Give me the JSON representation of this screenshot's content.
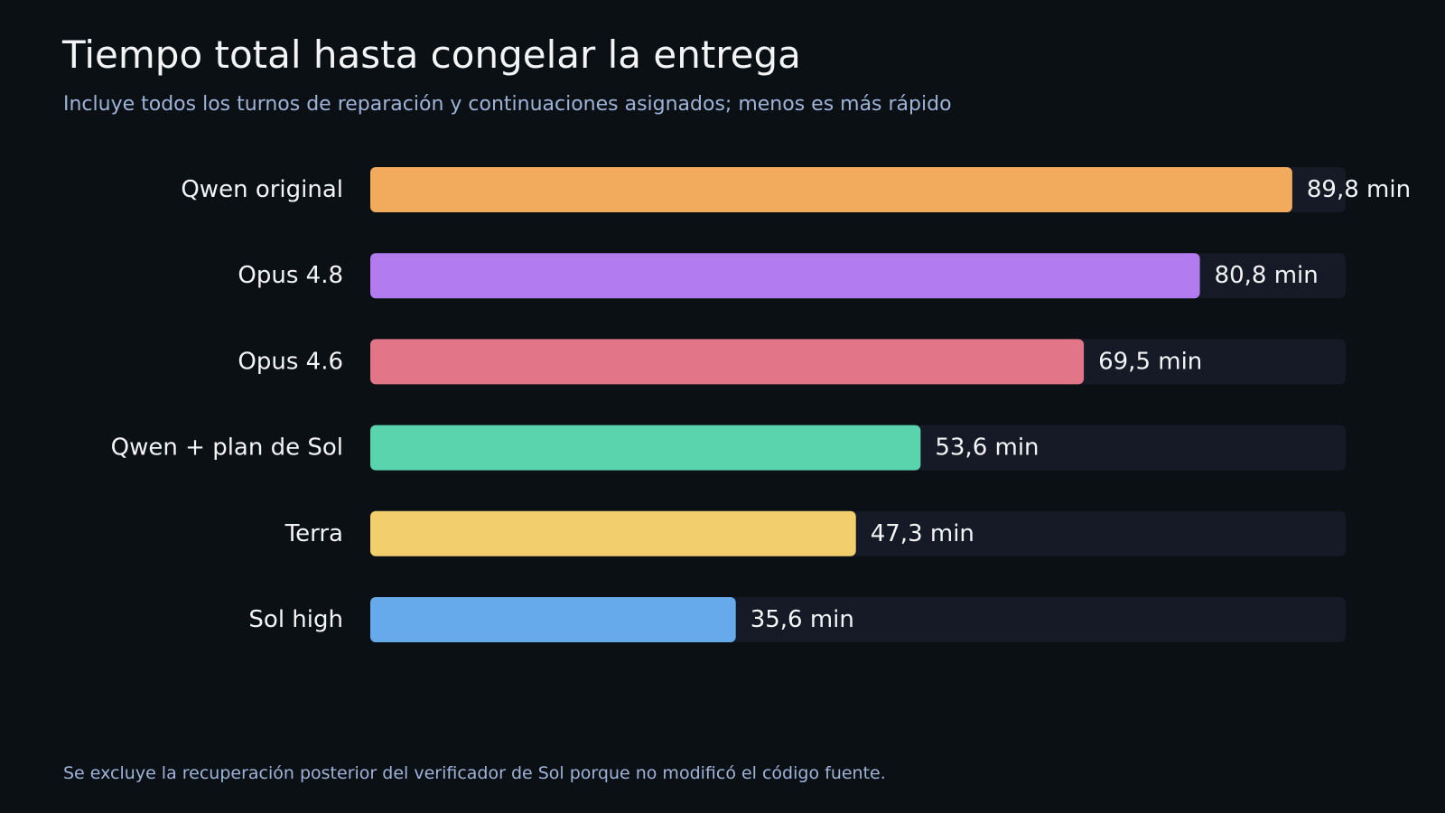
{
  "chart_data": {
    "type": "bar",
    "orientation": "horizontal",
    "title": "Tiempo total hasta congelar la entrega",
    "subtitle": "Incluye todos los turnos de reparación y continuaciones asignados; menos es más rápido",
    "footnote": "Se excluye la recuperación posterior del verificador de Sol porque no modificó el código fuente.",
    "unit": "min",
    "categories": [
      "Qwen original",
      "Opus 4.8",
      "Opus 4.6",
      "Qwen + plan de Sol",
      "Terra",
      "Sol high"
    ],
    "values": [
      89.8,
      80.8,
      69.5,
      53.6,
      47.3,
      35.6
    ],
    "value_labels": [
      "89,8 min",
      "80,8 min",
      "69,5 min",
      "53,6 min",
      "47,3 min",
      "35,6 min"
    ],
    "colors": [
      "#f2ab5c",
      "#b27bf0",
      "#e27587",
      "#59d4ac",
      "#f2cf6c",
      "#66aaeb"
    ],
    "track_color": "#151a26",
    "xlim": [
      0,
      95
    ],
    "grid": false,
    "legend": "none"
  }
}
